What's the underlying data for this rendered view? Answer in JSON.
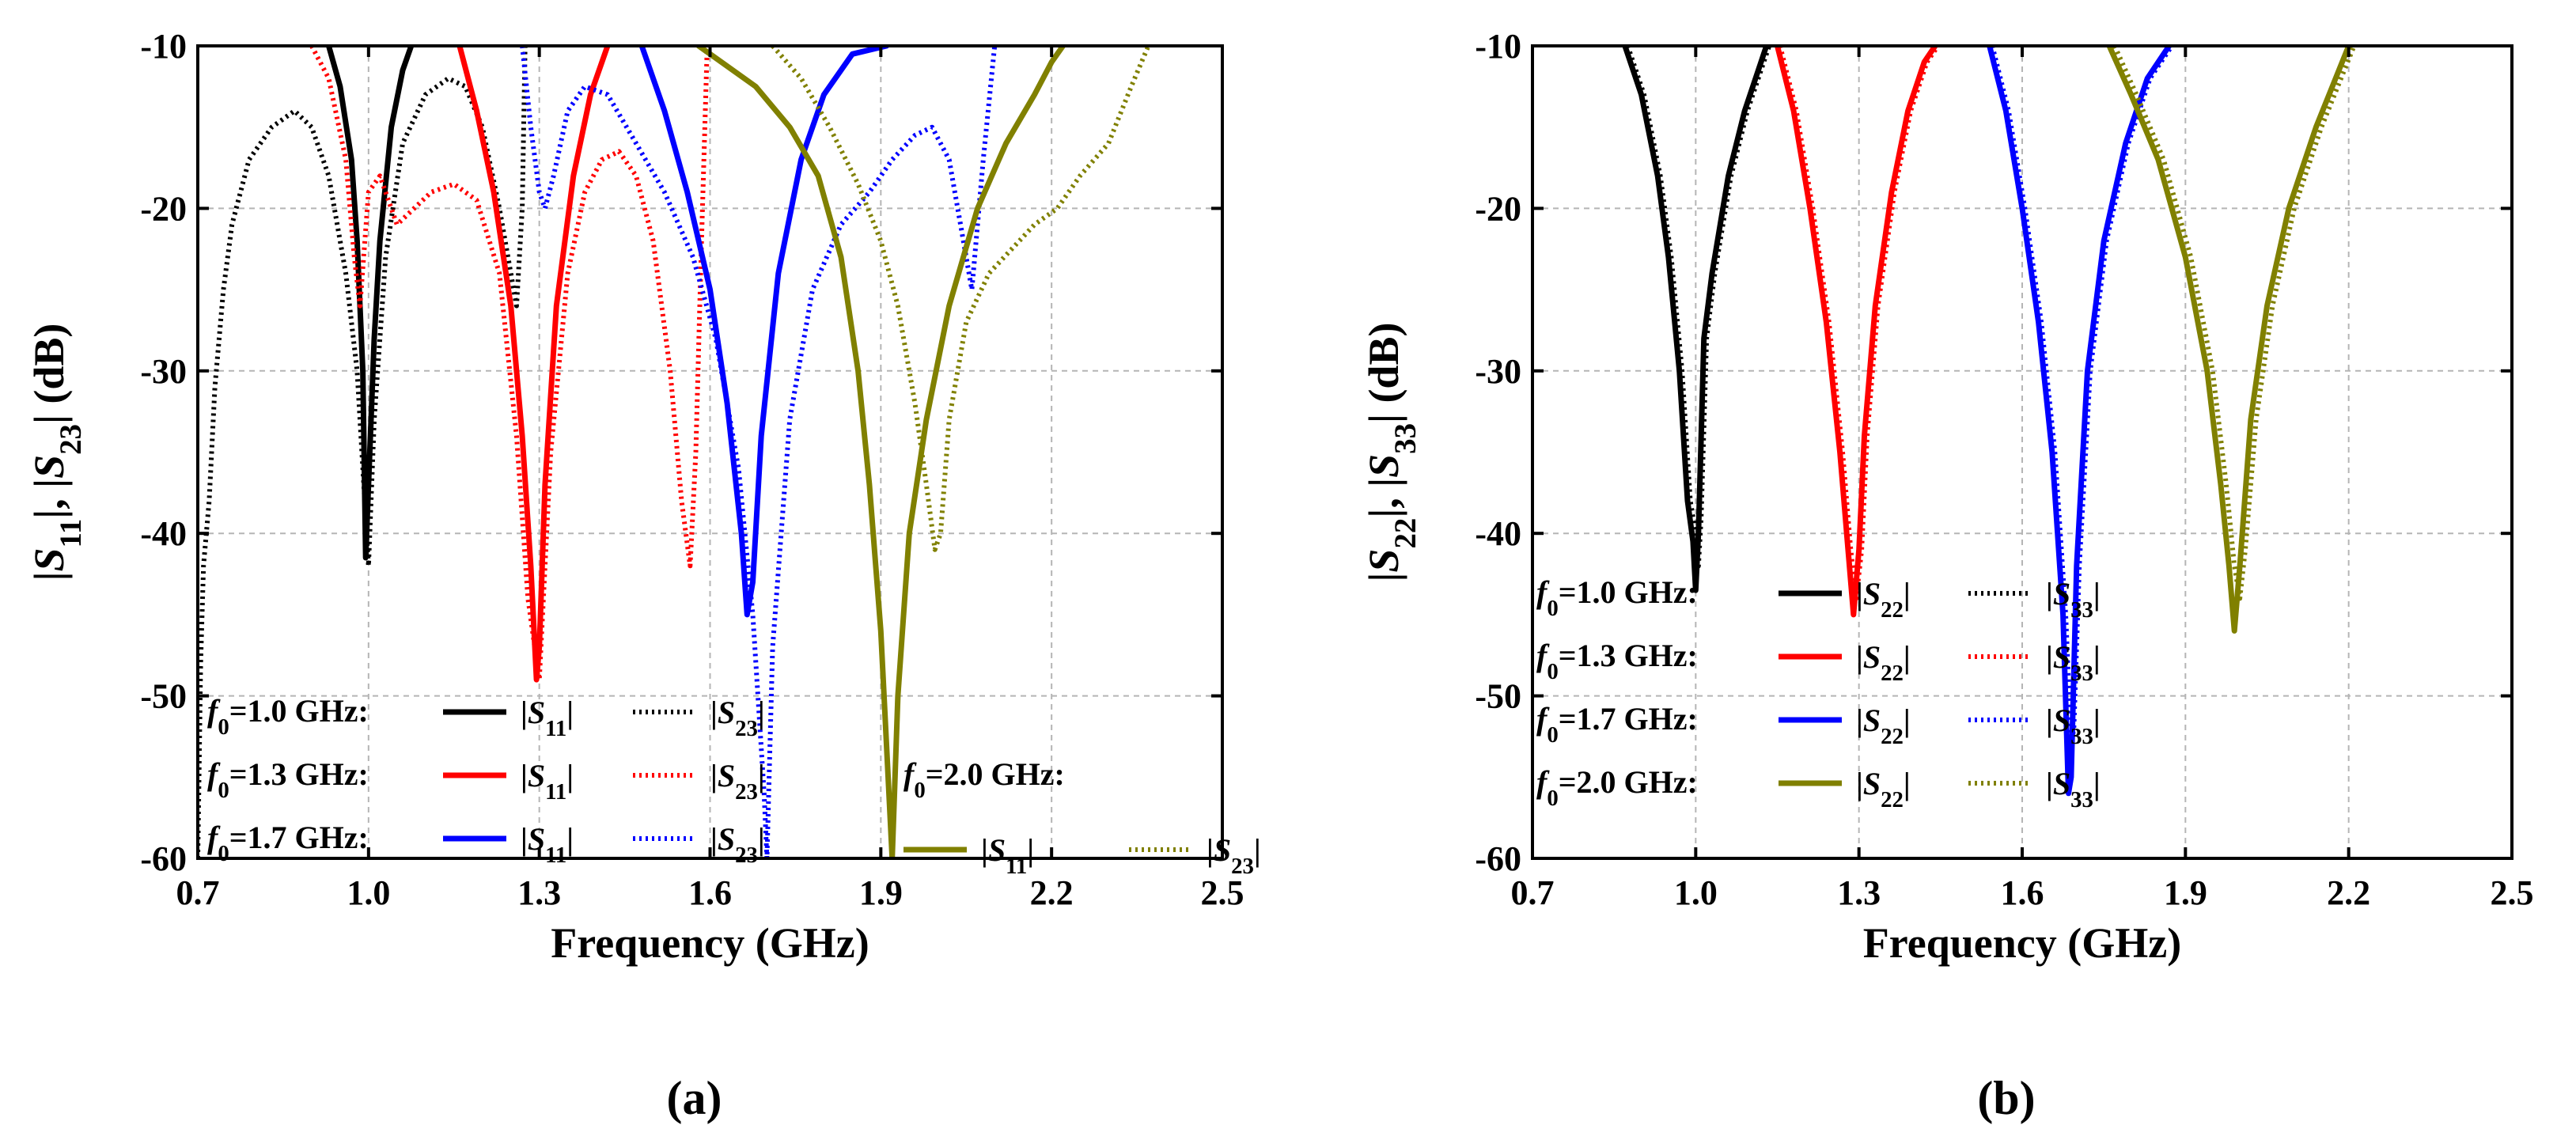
{
  "chart_data": [
    {
      "panel": "a",
      "caption": "(a)",
      "type": "line",
      "xlabel": "Frequency (GHz)",
      "ylabel_parts": [
        "|",
        "S",
        "11",
        "|, |",
        "S",
        "23",
        "| (dB)"
      ],
      "xlim": [
        0.7,
        2.5
      ],
      "ylim": [
        -60,
        -10
      ],
      "xticks": [
        "0.7",
        "1.0",
        "1.3",
        "1.6",
        "1.9",
        "2.2",
        "2.5"
      ],
      "yticks": [
        "-10",
        "-20",
        "-30",
        "-40",
        "-50",
        "-60"
      ],
      "grid": true,
      "series": [
        {
          "name": "f0=1.0 GHz |S11|",
          "color": "#000000",
          "dash": false,
          "x": [
            0.93,
            0.95,
            0.97,
            0.98,
            0.99,
            0.995,
            1.0,
            1.01,
            1.02,
            1.04,
            1.06,
            1.075
          ],
          "y": [
            -10,
            -12.5,
            -17,
            -22,
            -30,
            -41.5,
            -37,
            -28,
            -22,
            -15,
            -11.5,
            -10
          ]
        },
        {
          "name": "f0=1.0 GHz |S23|",
          "color": "#000000",
          "dash": true,
          "x": [
            0.7,
            0.705,
            0.71,
            0.72,
            0.73,
            0.745,
            0.76,
            0.79,
            0.83,
            0.87,
            0.9,
            0.93,
            0.96,
            0.98,
            0.99,
            1.0,
            1.01,
            1.03,
            1.06,
            1.1,
            1.14,
            1.17,
            1.2,
            1.23,
            1.26,
            1.27,
            1.275
          ],
          "y": [
            -60,
            -48,
            -42,
            -38,
            -31,
            -25,
            -21,
            -17,
            -15,
            -14,
            -15,
            -18,
            -24,
            -30,
            -36,
            -42,
            -33,
            -23,
            -16,
            -13,
            -12,
            -12.5,
            -15,
            -20,
            -26,
            -20,
            -10
          ]
        },
        {
          "name": "f0=1.3 GHz |S11|",
          "color": "#ff0000",
          "dash": false,
          "x": [
            1.16,
            1.19,
            1.22,
            1.25,
            1.27,
            1.285,
            1.295,
            1.3,
            1.31,
            1.33,
            1.36,
            1.39,
            1.42
          ],
          "y": [
            -10,
            -14,
            -19,
            -26,
            -34,
            -42,
            -49,
            -47,
            -37,
            -26,
            -18,
            -13,
            -10
          ]
        },
        {
          "name": "f0=1.3 GHz |S23|",
          "color": "#ff0000",
          "dash": true,
          "x": [
            0.9,
            0.93,
            0.96,
            0.975,
            0.985,
            1.0,
            1.02,
            1.05,
            1.08,
            1.11,
            1.15,
            1.19,
            1.23,
            1.26,
            1.28,
            1.3,
            1.32,
            1.35,
            1.38,
            1.41,
            1.44,
            1.47,
            1.5,
            1.53,
            1.55,
            1.565,
            1.575,
            1.585,
            1.595
          ],
          "y": [
            -10,
            -12,
            -17,
            -23,
            -26,
            -19,
            -18,
            -21,
            -20,
            -19,
            -18.5,
            -19.5,
            -24,
            -34,
            -44,
            -49,
            -35,
            -24,
            -19,
            -17,
            -16.5,
            -18,
            -22,
            -30,
            -38,
            -42,
            -35,
            -22,
            -10
          ]
        },
        {
          "name": "f0=1.7 GHz |S11|",
          "color": "#0000ff",
          "dash": false,
          "x": [
            1.48,
            1.52,
            1.56,
            1.6,
            1.63,
            1.655,
            1.665,
            1.675,
            1.69,
            1.72,
            1.76,
            1.8,
            1.85,
            1.91
          ],
          "y": [
            -10,
            -14,
            -19,
            -25,
            -32,
            -40,
            -45,
            -43,
            -34,
            -24,
            -17,
            -13,
            -10.5,
            -10
          ]
        },
        {
          "name": "f0=1.7 GHz |S23|",
          "color": "#0000ff",
          "dash": true,
          "x": [
            1.27,
            1.285,
            1.3,
            1.31,
            1.325,
            1.35,
            1.38,
            1.42,
            1.47,
            1.52,
            1.57,
            1.61,
            1.65,
            1.675,
            1.695,
            1.7,
            1.71,
            1.74,
            1.78,
            1.83,
            1.88,
            1.92,
            1.96,
            1.99,
            2.02,
            2.04,
            2.06,
            2.08,
            2.1
          ],
          "y": [
            -10,
            -15,
            -19,
            -20,
            -18,
            -14,
            -12.5,
            -13,
            -16,
            -19,
            -23,
            -28,
            -36,
            -45,
            -56,
            -60,
            -47,
            -33,
            -25,
            -21,
            -19,
            -17,
            -15.5,
            -15,
            -17,
            -21,
            -25,
            -17,
            -10
          ]
        },
        {
          "name": "f0=2.0 GHz |S11|",
          "color": "#808000",
          "dash": false,
          "x": [
            1.58,
            1.62,
            1.68,
            1.74,
            1.79,
            1.83,
            1.86,
            1.88,
            1.9,
            1.91,
            1.92,
            1.93,
            1.95,
            1.98,
            2.02,
            2.07,
            2.12,
            2.17,
            2.2,
            2.22
          ],
          "y": [
            -10,
            -11,
            -12.5,
            -15,
            -18,
            -23,
            -30,
            -37,
            -46,
            -53,
            -60,
            -50,
            -40,
            -33,
            -26,
            -20,
            -16,
            -13,
            -11,
            -10
          ]
        },
        {
          "name": "f0=2.0 GHz |S23|",
          "color": "#808000",
          "dash": true,
          "x": [
            1.71,
            1.76,
            1.81,
            1.86,
            1.9,
            1.93,
            1.96,
            1.98,
            1.995,
            2.005,
            2.02,
            2.05,
            2.09,
            2.13,
            2.17,
            2.21,
            2.25,
            2.3,
            2.34,
            2.37
          ],
          "y": [
            -10,
            -12,
            -15,
            -18.5,
            -22,
            -26,
            -32,
            -37,
            -41,
            -40,
            -33,
            -27,
            -24,
            -22.5,
            -21,
            -20,
            -18,
            -16,
            -12.5,
            -10
          ]
        }
      ],
      "legend": {
        "rows": [
          {
            "f": "f",
            "sub": "0",
            "value": "=1.0 GHz:",
            "color": "#000000",
            "solid_label": [
              "|",
              "S",
              "11",
              "|"
            ],
            "dot_label": [
              "|",
              "S",
              "23",
              "|"
            ]
          },
          {
            "f": "f",
            "sub": "0",
            "value": "=1.3 GHz:",
            "color": "#ff0000",
            "solid_label": [
              "|",
              "S",
              "11",
              "|"
            ],
            "dot_label": [
              "|",
              "S",
              "23",
              "|"
            ]
          },
          {
            "f": "f",
            "sub": "0",
            "value": "=1.7 GHz:",
            "color": "#0000ff",
            "solid_label": [
              "|",
              "S",
              "11",
              "|"
            ],
            "dot_label": [
              "|",
              "S",
              "23",
              "|"
            ]
          }
        ],
        "extra": {
          "f": "f",
          "sub": "0",
          "value": "=2.0 GHz:",
          "color": "#808000",
          "solid_label": [
            "|",
            "S",
            "11",
            "|"
          ],
          "dot_label": [
            "|",
            "S",
            "23",
            "|"
          ]
        }
      }
    },
    {
      "panel": "b",
      "caption": "(b)",
      "type": "line",
      "xlabel": "Frequency (GHz)",
      "ylabel_parts": [
        "|",
        "S",
        "22",
        "|, |",
        "S",
        "33",
        "| (dB)"
      ],
      "xlim": [
        0.7,
        2.5
      ],
      "ylim": [
        -60,
        -10
      ],
      "xticks": [
        "0.7",
        "1.0",
        "1.3",
        "1.6",
        "1.9",
        "2.2",
        "2.5"
      ],
      "yticks": [
        "-10",
        "-20",
        "-30",
        "-40",
        "-50",
        "-60"
      ],
      "grid": true,
      "series": [
        {
          "name": "f0=1.0 GHz |S22|",
          "color": "#000000",
          "dash": false,
          "x": [
            0.87,
            0.9,
            0.93,
            0.95,
            0.97,
            0.985,
            0.995,
            1.0,
            1.005,
            1.015,
            1.03,
            1.06,
            1.09,
            1.12,
            1.13
          ],
          "y": [
            -10,
            -13,
            -18,
            -23,
            -30,
            -38,
            -40.5,
            -43.5,
            -40,
            -28,
            -24,
            -18,
            -14,
            -11,
            -10
          ]
        },
        {
          "name": "f0=1.0 GHz |S33|",
          "color": "#000000",
          "dash": true,
          "x": [
            0.875,
            0.905,
            0.935,
            0.955,
            0.975,
            0.99,
            1.0,
            1.005,
            1.01,
            1.02,
            1.035,
            1.065,
            1.095,
            1.125,
            1.135
          ],
          "y": [
            -10,
            -13,
            -18,
            -23,
            -30,
            -38,
            -40,
            -42,
            -39,
            -28,
            -24,
            -18,
            -14,
            -11,
            -10
          ]
        },
        {
          "name": "f0=1.3 GHz |S22|",
          "color": "#ff0000",
          "dash": false,
          "x": [
            1.15,
            1.18,
            1.21,
            1.24,
            1.265,
            1.28,
            1.29,
            1.3,
            1.31,
            1.33,
            1.36,
            1.39,
            1.42,
            1.44
          ],
          "y": [
            -10,
            -14,
            -20,
            -27,
            -35,
            -41,
            -45,
            -41,
            -34,
            -26,
            -19,
            -14,
            -11,
            -10
          ]
        },
        {
          "name": "f0=1.3 GHz |S33|",
          "color": "#ff0000",
          "dash": true,
          "x": [
            1.155,
            1.185,
            1.215,
            1.245,
            1.27,
            1.285,
            1.295,
            1.305,
            1.315,
            1.335,
            1.365,
            1.395,
            1.425,
            1.445
          ],
          "y": [
            -10,
            -14,
            -20,
            -27,
            -35,
            -41,
            -44,
            -41,
            -34,
            -26,
            -19,
            -14,
            -11,
            -10
          ]
        },
        {
          "name": "f0=1.7 GHz |S22|",
          "color": "#0000ff",
          "dash": false,
          "x": [
            1.54,
            1.57,
            1.6,
            1.63,
            1.655,
            1.675,
            1.685,
            1.69,
            1.7,
            1.72,
            1.75,
            1.79,
            1.83,
            1.87
          ],
          "y": [
            -10,
            -14,
            -20,
            -27,
            -35,
            -45,
            -56,
            -55,
            -42,
            -30,
            -22,
            -16,
            -12,
            -10
          ]
        },
        {
          "name": "f0=1.7 GHz |S33|",
          "color": "#0000ff",
          "dash": true,
          "x": [
            1.545,
            1.575,
            1.605,
            1.635,
            1.66,
            1.68,
            1.69,
            1.695,
            1.705,
            1.725,
            1.755,
            1.795,
            1.835,
            1.875
          ],
          "y": [
            -10,
            -14,
            -20,
            -27,
            -35,
            -45,
            -53,
            -52,
            -42,
            -30,
            -22,
            -16,
            -12,
            -10
          ]
        },
        {
          "name": "f0=2.0 GHz |S22|",
          "color": "#808000",
          "dash": false,
          "x": [
            1.76,
            1.8,
            1.85,
            1.9,
            1.94,
            1.965,
            1.98,
            1.99,
            2.0,
            2.02,
            2.05,
            2.09,
            2.14,
            2.2
          ],
          "y": [
            -10,
            -13,
            -17,
            -23,
            -30,
            -37,
            -42,
            -46,
            -42,
            -33,
            -26,
            -20,
            -15,
            -10
          ]
        },
        {
          "name": "f0=2.0 GHz |S33|",
          "color": "#808000",
          "dash": true,
          "x": [
            1.77,
            1.81,
            1.86,
            1.91,
            1.95,
            1.975,
            1.99,
            2.0,
            2.01,
            2.03,
            2.06,
            2.1,
            2.15,
            2.21
          ],
          "y": [
            -10,
            -13,
            -17,
            -23,
            -30,
            -37,
            -42,
            -44,
            -41,
            -33,
            -26,
            -20,
            -15,
            -10
          ]
        }
      ],
      "legend": {
        "rows": [
          {
            "f": "f",
            "sub": "0",
            "value": "=1.0 GHz:",
            "color": "#000000",
            "solid_label": [
              "|",
              "S",
              "22",
              "|"
            ],
            "dot_label": [
              "|",
              "S",
              "33",
              "|"
            ]
          },
          {
            "f": "f",
            "sub": "0",
            "value": "=1.3 GHz:",
            "color": "#ff0000",
            "solid_label": [
              "|",
              "S",
              "22",
              "|"
            ],
            "dot_label": [
              "|",
              "S",
              "33",
              "|"
            ]
          },
          {
            "f": "f",
            "sub": "0",
            "value": "=1.7 GHz:",
            "color": "#0000ff",
            "solid_label": [
              "|",
              "S",
              "22",
              "|"
            ],
            "dot_label": [
              "|",
              "S",
              "33",
              "|"
            ]
          },
          {
            "f": "f",
            "sub": "0",
            "value": "=2.0 GHz:",
            "color": "#808000",
            "solid_label": [
              "|",
              "S",
              "22",
              "|"
            ],
            "dot_label": [
              "|",
              "S",
              "33",
              "|"
            ]
          }
        ]
      }
    }
  ]
}
